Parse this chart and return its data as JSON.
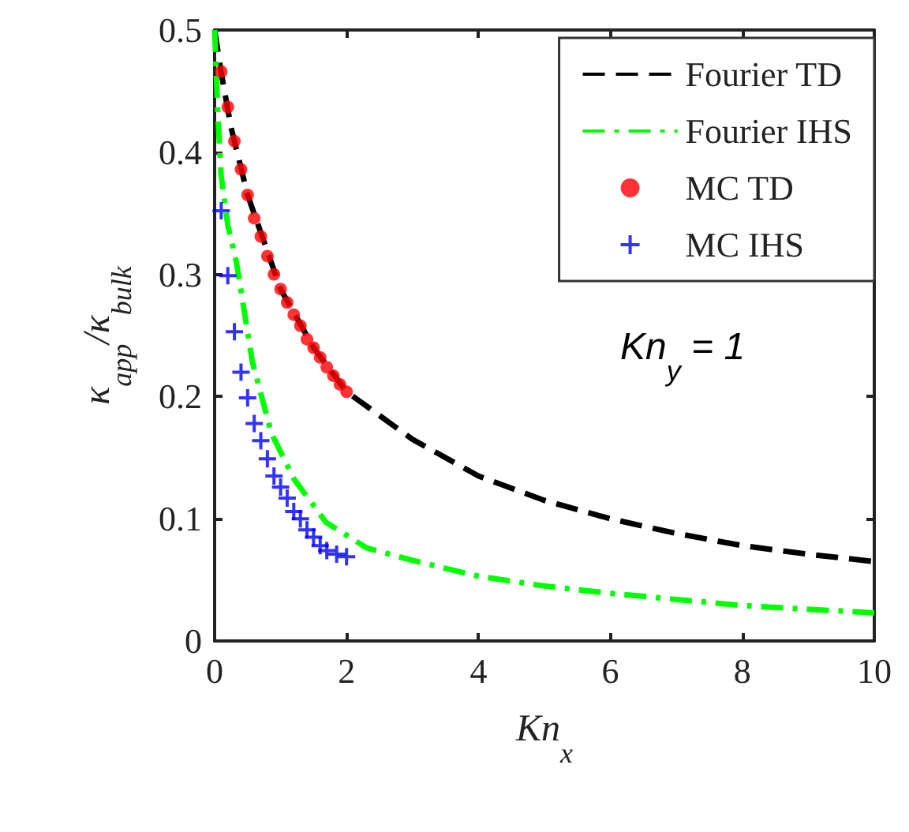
{
  "chart_data": {
    "type": "line",
    "xlabel": "Kn$_{x}$",
    "ylabel": "κ$_{app}$/κ$_{bulk}$",
    "xlim": [
      0,
      10
    ],
    "ylim": [
      0,
      0.5
    ],
    "xticks": [
      0,
      2,
      4,
      6,
      8,
      10
    ],
    "yticks": [
      0,
      0.1,
      0.2,
      0.3,
      0.4,
      0.5
    ],
    "grid": false,
    "legend": "top right",
    "annotations": [
      "Kn$_{y}$ = 1"
    ],
    "series": [
      {
        "name": "Fourier TD",
        "color": "#000000",
        "line_style": "dashed",
        "marker": "none",
        "x": [
          0,
          0.1,
          0.25,
          0.5,
          1,
          1.5,
          2,
          3,
          4,
          5,
          6,
          7,
          8,
          9,
          10
        ],
        "values": [
          0.5,
          0.465,
          0.42,
          0.365,
          0.288,
          0.24,
          0.204,
          0.165,
          0.135,
          0.115,
          0.1,
          0.088,
          0.078,
          0.071,
          0.065
        ]
      },
      {
        "name": "Fourier IHS",
        "color": "#00ff00",
        "line_style": "dashdot",
        "marker": "none",
        "x": [
          0,
          0.05,
          0.1,
          0.2,
          0.33,
          0.57,
          0.86,
          1.21,
          1.69,
          2.31,
          3,
          4,
          5,
          6,
          8,
          10
        ],
        "values": [
          0.5,
          0.43,
          0.38,
          0.34,
          0.31,
          0.229,
          0.17,
          0.132,
          0.097,
          0.076,
          0.066,
          0.053,
          0.045,
          0.039,
          0.029,
          0.023
        ]
      },
      {
        "name": "MC TD",
        "type": "scatter",
        "color": "#ff0000",
        "marker": "circle",
        "x": [
          0.1,
          0.2,
          0.3,
          0.4,
          0.5,
          0.6,
          0.7,
          0.8,
          0.9,
          1.0,
          1.1,
          1.2,
          1.3,
          1.4,
          1.5,
          1.6,
          1.7,
          1.8,
          1.9,
          2.0
        ],
        "values": [
          0.466,
          0.437,
          0.409,
          0.386,
          0.365,
          0.346,
          0.331,
          0.315,
          0.3,
          0.288,
          0.277,
          0.267,
          0.258,
          0.247,
          0.24,
          0.232,
          0.224,
          0.217,
          0.21,
          0.204
        ]
      },
      {
        "name": "MC IHS",
        "type": "scatter",
        "color": "#0000ff",
        "marker": "cross",
        "x": [
          0.1,
          0.2,
          0.3,
          0.4,
          0.5,
          0.6,
          0.7,
          0.8,
          0.9,
          1.0,
          1.1,
          1.2,
          1.3,
          1.4,
          1.5,
          1.6,
          1.7,
          1.85,
          2.0
        ],
        "values": [
          0.352,
          0.299,
          0.253,
          0.22,
          0.199,
          0.178,
          0.164,
          0.149,
          0.135,
          0.126,
          0.117,
          0.106,
          0.1,
          0.091,
          0.085,
          0.078,
          0.074,
          0.071,
          0.069
        ]
      }
    ]
  }
}
